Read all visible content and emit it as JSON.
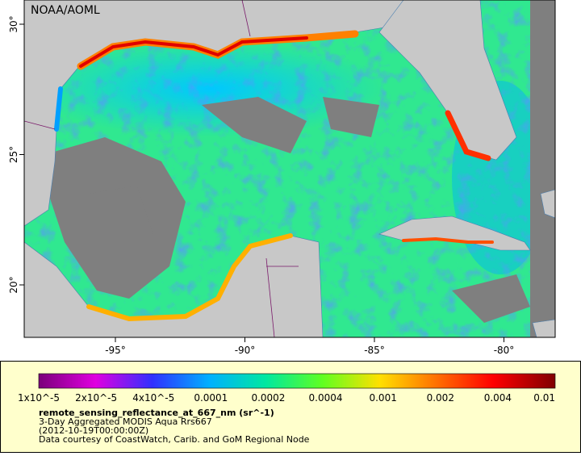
{
  "map": {
    "attribution": "NOAA/AOML",
    "lon_ticks": [
      {
        "value": -95,
        "label": "-95°"
      },
      {
        "value": -90,
        "label": "-90°"
      },
      {
        "value": -85,
        "label": "-85°"
      },
      {
        "value": -80,
        "label": "-80°"
      }
    ],
    "lat_ticks": [
      {
        "value": 30,
        "label": "30°"
      },
      {
        "value": 25,
        "label": "25°"
      },
      {
        "value": 20,
        "label": "20°"
      }
    ]
  },
  "legend": {
    "colorbar_labels": [
      "1x10^-5",
      "2x10^-5",
      "4x10^-5",
      "0.0001",
      "0.0002",
      "0.0004",
      "0.001",
      "0.002",
      "0.004",
      "0.01"
    ],
    "variable": "remote_sensing_reflectance_at_667_nm (sr^-1)",
    "description": "3-Day Aggregated MODIS Aqua Rrs667",
    "time": "(2012-10-19T00:00:00Z)",
    "credit": "Data courtesy of CoastWatch, Carib. and GoM Regional Node"
  }
}
